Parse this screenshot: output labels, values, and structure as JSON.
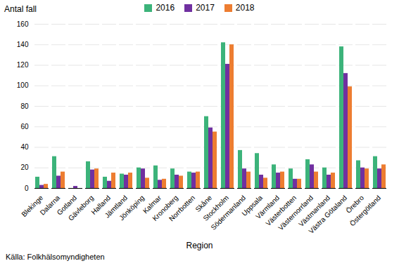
{
  "chart_data": {
    "type": "bar",
    "xlabel": "Region",
    "ylabel": "Antal fall",
    "annotations": [
      "Källa: Folkhälsomyndigheten"
    ],
    "categories": [
      "Blekinge",
      "Dalarna",
      "Gotland",
      "Gävleborg",
      "Halland",
      "Jämtland",
      "Jönköping",
      "Kalmar",
      "Kronoberg",
      "Norrbotten",
      "Skåne",
      "Stockholm",
      "Södermanland",
      "Uppsala",
      "Värmland",
      "Västerbotten",
      "Västernorrland",
      "Västmanland",
      "Västra Götaland",
      "Örebro",
      "Östergötland"
    ],
    "series": [
      {
        "name": "2016",
        "color": "#3cb37a",
        "values": [
          11,
          31,
          0,
          26,
          11,
          14,
          20,
          22,
          19,
          16,
          70,
          142,
          37,
          34,
          23,
          19,
          28,
          20,
          138,
          27,
          31
        ]
      },
      {
        "name": "2017",
        "color": "#7030a0",
        "values": [
          3,
          12,
          2,
          18,
          7,
          13,
          19,
          8,
          13,
          15,
          59,
          121,
          19,
          13,
          15,
          9,
          23,
          13,
          112,
          20,
          19
        ]
      },
      {
        "name": "2018",
        "color": "#ed7d31",
        "values": [
          4,
          16,
          0,
          19,
          15,
          15,
          10,
          9,
          12,
          16,
          55,
          140,
          16,
          10,
          16,
          9,
          16,
          15,
          99,
          19,
          23
        ]
      }
    ],
    "ylim": [
      0,
      160
    ],
    "yticks": [
      0,
      20,
      40,
      60,
      80,
      100,
      120,
      140,
      160
    ],
    "grid": true,
    "legend": "top"
  }
}
